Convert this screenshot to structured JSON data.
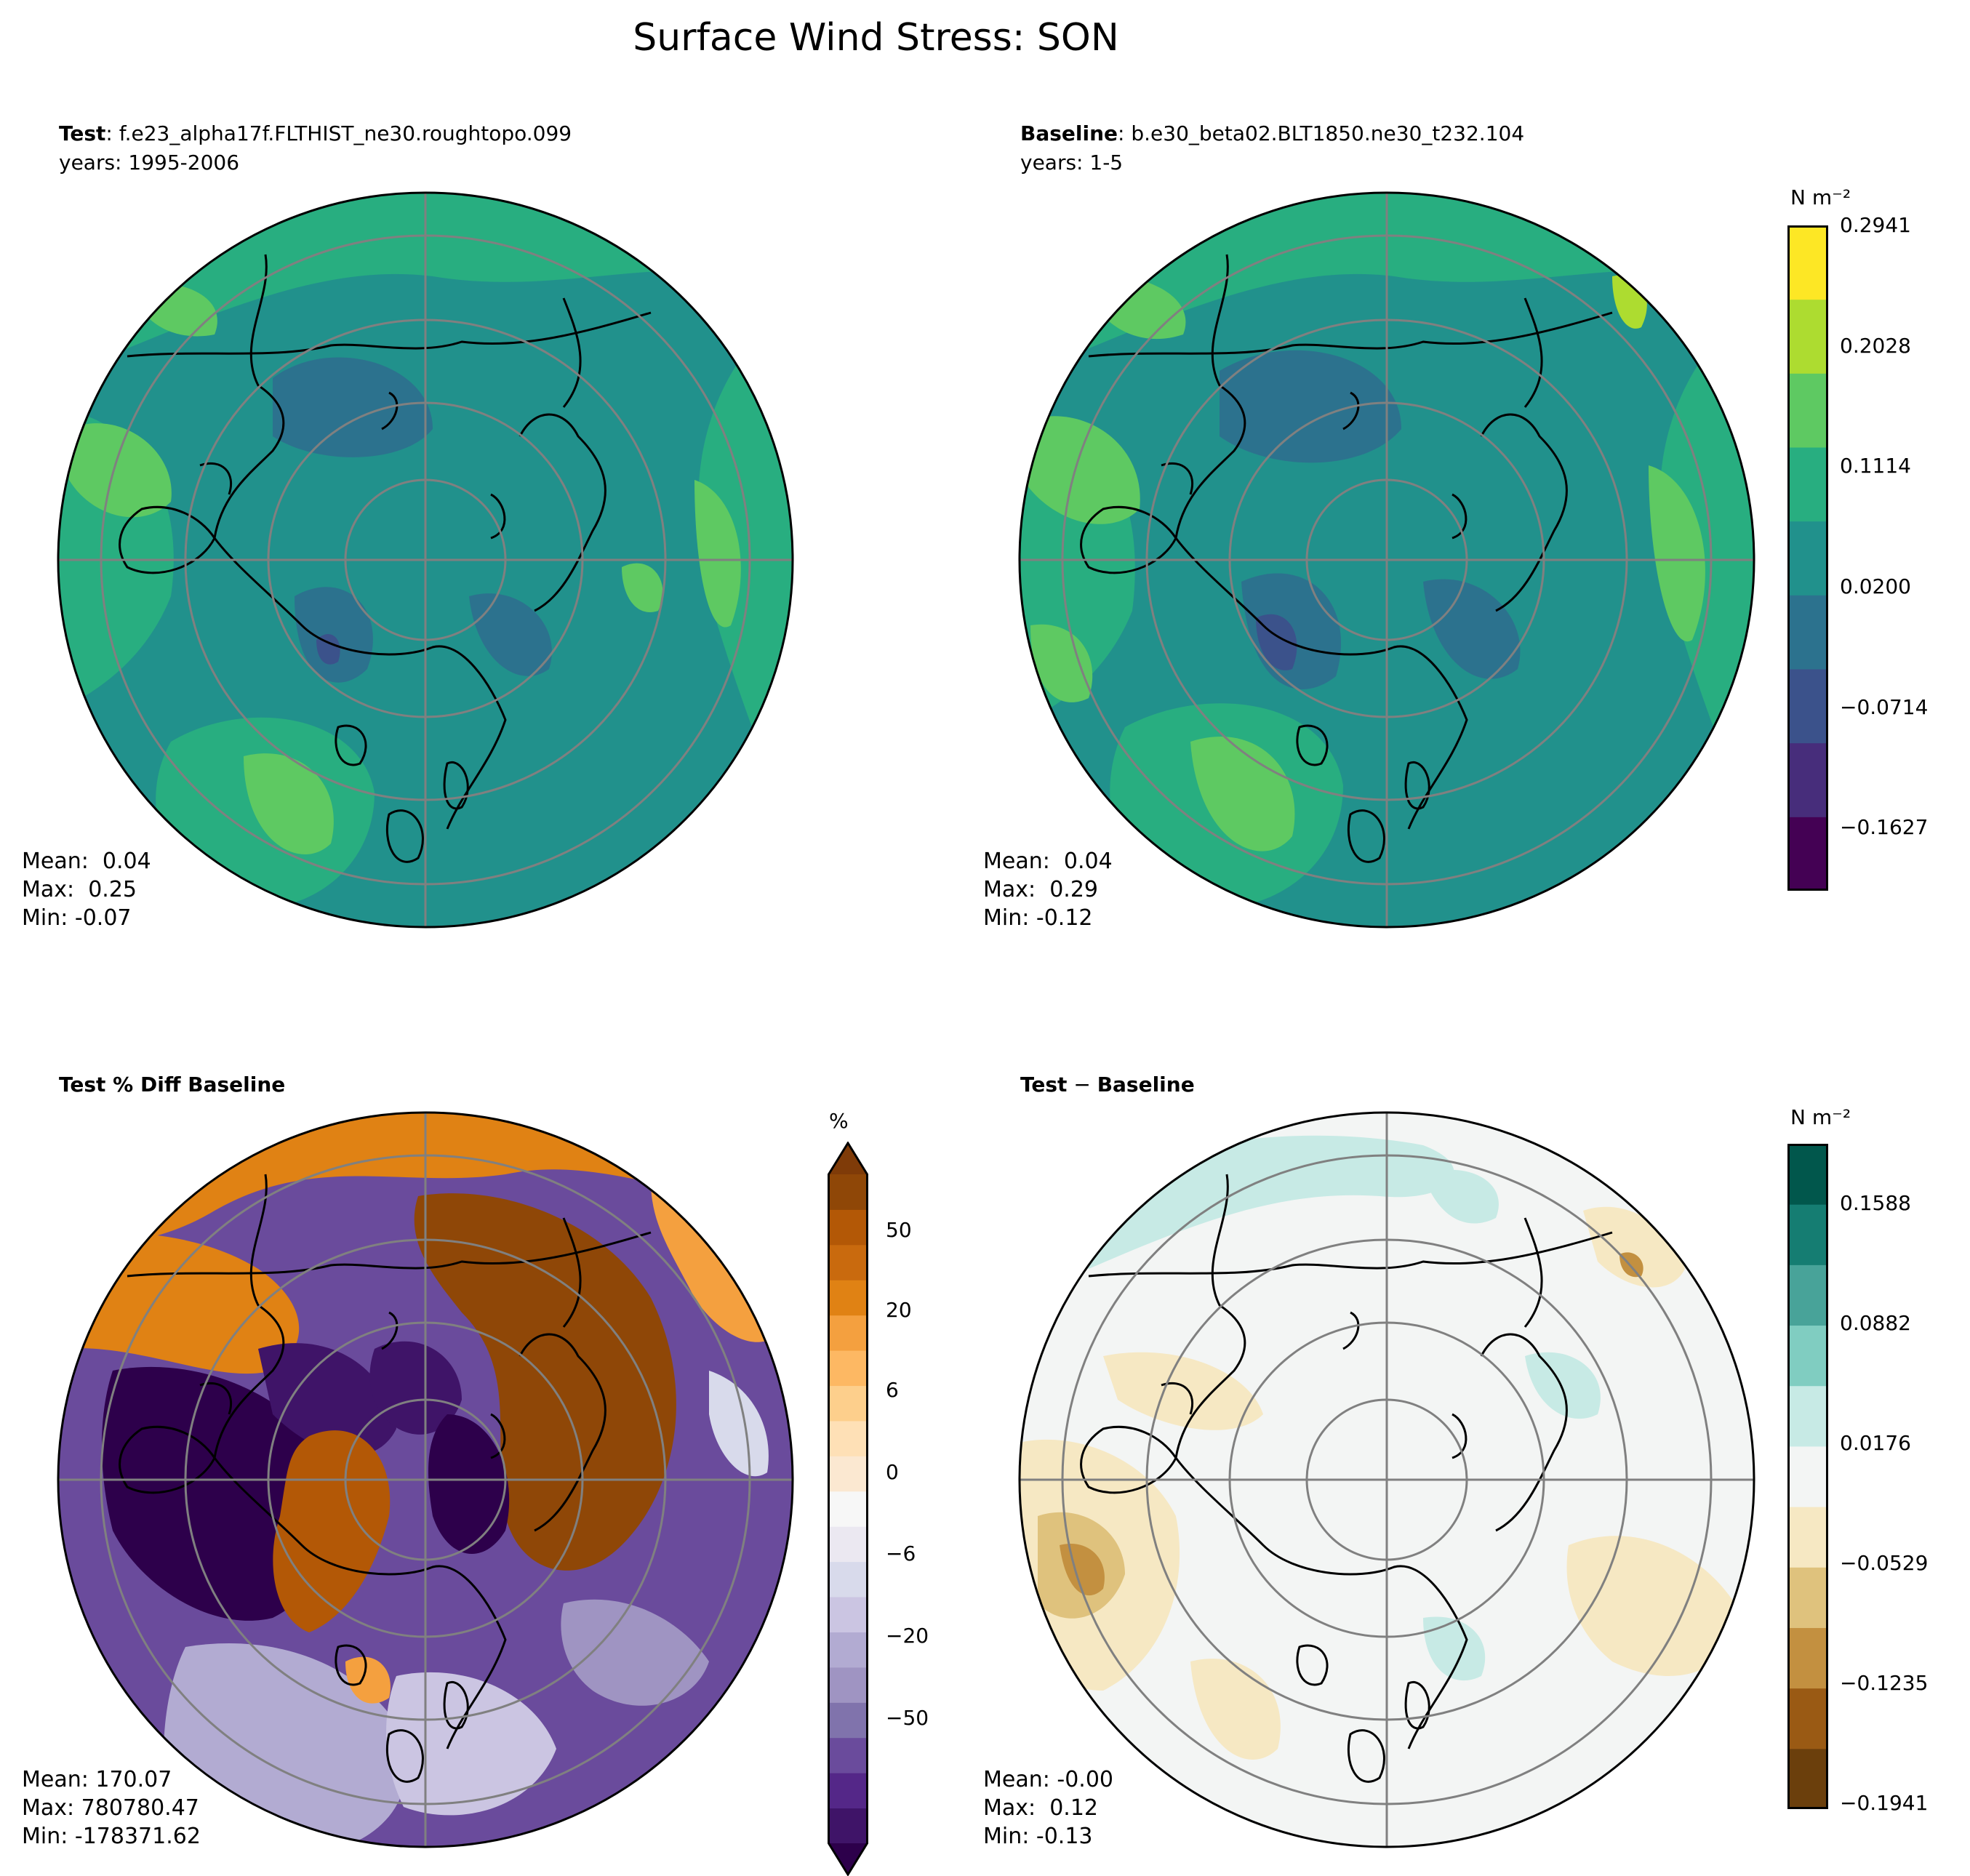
{
  "figure": {
    "title": "Surface Wind Stress: SON"
  },
  "panels": [
    {
      "id": "test",
      "title_bold": "Test",
      "title_sep": ": ",
      "title_rest": "f.e23_alpha17f.FLTHIST_ne30.roughtopo.099",
      "subtitle": "years: 1995-2006",
      "stats": {
        "mean": "Mean:  0.04",
        "max": "Max:  0.25",
        "min": "Min: -0.07"
      }
    },
    {
      "id": "baseline",
      "title_bold": "Baseline",
      "title_sep": ": ",
      "title_rest": "b.e30_beta02.BLT1850.ne30_t232.104",
      "subtitle": "years: 1-5",
      "stats": {
        "mean": "Mean:  0.04",
        "max": "Max:  0.29",
        "min": "Min: -0.12"
      }
    },
    {
      "id": "pctdiff",
      "title_bold": "Test % Diff Baseline",
      "title_sep": "",
      "title_rest": "",
      "subtitle": "",
      "stats": {
        "mean": "Mean: 170.07",
        "max": "Max: 780780.47",
        "min": "Min: -178371.62"
      }
    },
    {
      "id": "diff",
      "title_bold": "Test",
      "title_sep": " − ",
      "title_rest": "Baseline",
      "title_rest_bold": true,
      "subtitle": "",
      "stats": {
        "mean": "Mean: -0.00",
        "max": "Max:  0.12",
        "min": "Min: -0.13"
      }
    }
  ],
  "colorbars": {
    "main": {
      "unit": "N m⁻²",
      "ticks": [
        "0.2941",
        "0.2028",
        "0.1114",
        "0.0200",
        "−0.0714",
        "−0.1627"
      ],
      "colors": [
        "#440154",
        "#472d7b",
        "#3b528b",
        "#2c728e",
        "#21918c",
        "#28ae80",
        "#5ec962",
        "#addc30",
        "#fde725"
      ]
    },
    "pct": {
      "unit": "%",
      "ticks": [
        "50",
        "20",
        "6",
        "0",
        "−6",
        "−20",
        "−50"
      ],
      "colors": [
        "#2d004b",
        "#3f1468",
        "#542788",
        "#6a4b9c",
        "#8073ac",
        "#9f94c2",
        "#b2abd2",
        "#cbc5e2",
        "#d8daeb",
        "#ebe8f1",
        "#f7f7f7",
        "#fbe8d1",
        "#fee0b6",
        "#fdcf8c",
        "#fdb863",
        "#f4a03f",
        "#e08214",
        "#c96a0e",
        "#b35806",
        "#8f4707",
        "#7f3b08"
      ]
    },
    "diff": {
      "unit": "N m⁻²",
      "ticks": [
        "0.1588",
        "0.0882",
        "0.0176",
        "−0.0529",
        "−0.1235",
        "−0.1941"
      ],
      "colors": [
        "#6b3f0c",
        "#9a5a14",
        "#c39040",
        "#dfc27d",
        "#f6e8c3",
        "#f3f5f4",
        "#c7eae5",
        "#80cdc1",
        "#48a399",
        "#157d72",
        "#01574c"
      ]
    }
  }
}
